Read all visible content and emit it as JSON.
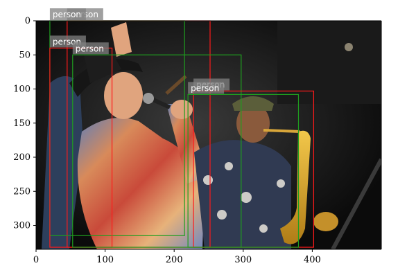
{
  "image": {
    "description_hidden": false
  },
  "axes": {
    "x_range": [
      0,
      500
    ],
    "y_range": [
      0,
      335
    ],
    "x_ticks": [
      0,
      100,
      200,
      300,
      400
    ],
    "y_ticks": [
      0,
      50,
      100,
      150,
      200,
      250,
      300
    ]
  },
  "colors": {
    "red_box": "#ff1a1a",
    "green_box": "#1f9e1f",
    "label_bg": "#808080"
  },
  "detections": [
    {
      "label": "person",
      "color": "red",
      "x1": 45,
      "y1": 0,
      "x2": 252,
      "y2": 332
    },
    {
      "label": "person",
      "color": "green",
      "x1": 20,
      "y1": 0,
      "x2": 215,
      "y2": 315
    },
    {
      "label": "person",
      "color": "red",
      "x1": 20,
      "y1": 40,
      "x2": 110,
      "y2": 332
    },
    {
      "label": "person",
      "color": "green",
      "x1": 53,
      "y1": 50,
      "x2": 297,
      "y2": 332
    },
    {
      "label": "person",
      "color": "red",
      "x1": 228,
      "y1": 103,
      "x2": 402,
      "y2": 332
    },
    {
      "label": "person",
      "color": "green",
      "x1": 220,
      "y1": 108,
      "x2": 380,
      "y2": 332
    }
  ]
}
